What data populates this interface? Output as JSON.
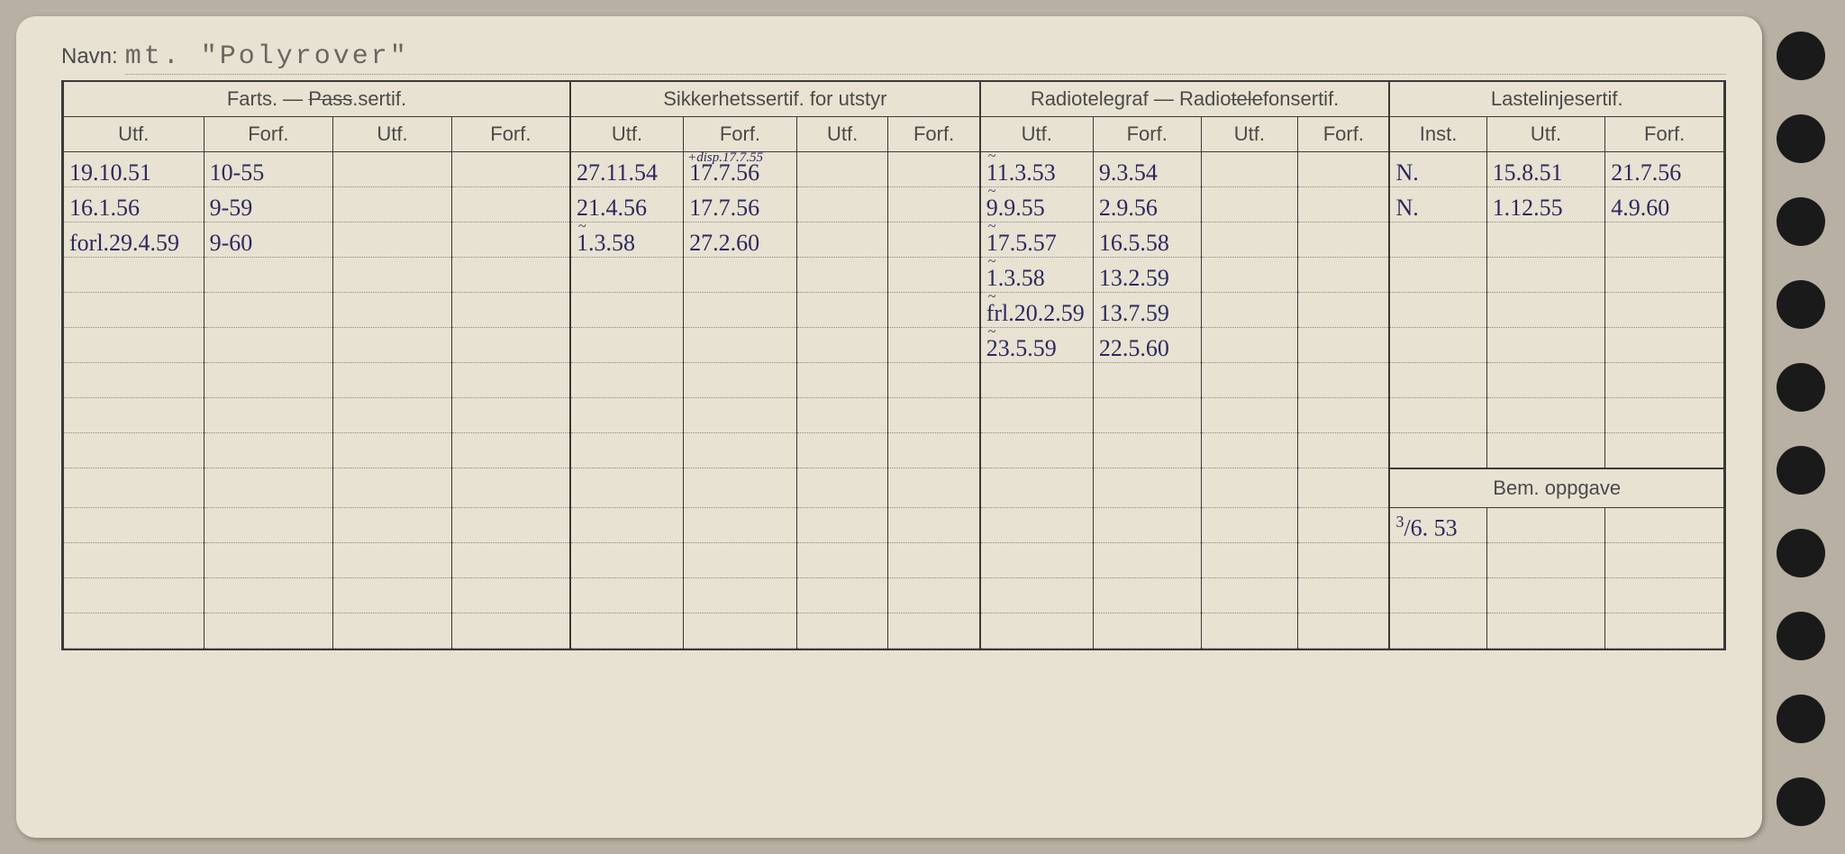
{
  "card": {
    "background": "#e8e2d2",
    "holes": 11
  },
  "name": {
    "label": "Navn:",
    "value": "mt. \"Polyrover\""
  },
  "sections": {
    "farts": {
      "title": "Farts. — Pass.sertif.",
      "strike_word": "Pass"
    },
    "sikkerhet": {
      "title": "Sikkerhetssertif. for utstyr"
    },
    "radio": {
      "title": "Radiotelegraf — Radiotelefonsertif.",
      "strike_word": "telefon"
    },
    "laste": {
      "title": "Lastelinjesertif."
    }
  },
  "subheaders": {
    "utf": "Utf.",
    "forf": "Forf.",
    "inst": "Inst."
  },
  "rows": [
    {
      "farts_utf1": "19.10.51",
      "farts_forf1": "10-55",
      "sikk_utf1": "27.11.54",
      "sikk_forf1": "17.7.56",
      "sikk_ann": "+disp.17.7.55",
      "radio_utf1": "11.3.53",
      "radio_forf1": "9.3.54",
      "radio_sq": "~",
      "laste_inst": "N.",
      "laste_utf": "15.8.51",
      "laste_forf": "21.7.56"
    },
    {
      "farts_utf1": "16.1.56",
      "farts_forf1": "9-59",
      "sikk_utf1": "21.4.56",
      "sikk_forf1": "17.7.56",
      "radio_utf1": "9.9.55",
      "radio_forf1": "2.9.56",
      "radio_sq": "~",
      "laste_inst": "N.",
      "laste_utf": "1.12.55",
      "laste_forf": "4.9.60"
    },
    {
      "farts_utf1": "forl.29.4.59",
      "farts_forf1": "9-60",
      "sikk_utf1": "1.3.58",
      "sikk_forf1": "27.2.60",
      "sikk_sq": "~",
      "radio_utf1": "17.5.57",
      "radio_forf1": "16.5.58",
      "radio_sq": "~"
    },
    {
      "radio_utf1": "1.3.58",
      "radio_forf1": "13.2.59",
      "radio_sq": "~"
    },
    {
      "radio_utf1": "frl.20.2.59",
      "radio_forf1": "13.7.59",
      "radio_sq": "~"
    },
    {
      "radio_utf1": "23.5.59",
      "radio_forf1": "22.5.60",
      "radio_sq": "~"
    },
    {},
    {},
    {},
    {}
  ],
  "bem": {
    "label": "Bem. oppgave",
    "value": "³/6. 53"
  },
  "style": {
    "ink_color": "#2a2a60",
    "print_color": "#4a4a4a",
    "typewriter_color": "#6a6660",
    "border_color": "#3a3a3a",
    "dotted_color": "#888888"
  },
  "col_widths": {
    "farts": [
      130,
      120,
      110,
      110
    ],
    "sikk": [
      105,
      105,
      85,
      85
    ],
    "radio": [
      105,
      100,
      90,
      85
    ],
    "laste": [
      90,
      110,
      110
    ]
  }
}
